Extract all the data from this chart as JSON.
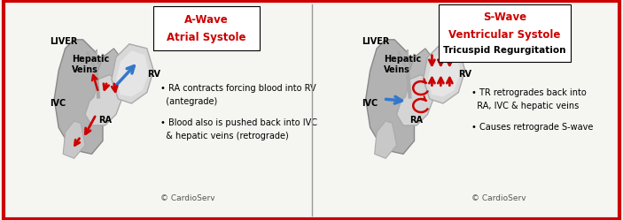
{
  "bg_color": "#f5f5f2",
  "border_color": "#cc0000",
  "border_width": 3,
  "panel1": {
    "title_line1": "A-Wave",
    "title_line2": "Atrial Systole",
    "title_color": "#cc0000",
    "bullet1a": "• RA contracts forcing blood into RV",
    "bullet1b": "  (antegrade)",
    "bullet2a": "• Blood also is pushed back into IVC",
    "bullet2b": "  & hepatic veins (retrograde)",
    "copyright": "© CardioServ"
  },
  "panel2": {
    "title_line1": "S-Wave",
    "title_line2": "Ventricular Systole",
    "title_line3": "Tricuspid Regurgitation",
    "title_color_12": "#cc0000",
    "title_color_3": "#000000",
    "bullet1a": "• TR retrogrades back into",
    "bullet1b": "  RA, IVC & hepatic veins",
    "bullet2a": "• Causes retrograde S-wave",
    "bullet2b": "",
    "copyright": "© CardioServ"
  },
  "red_arrow": "#cc0000",
  "blue_arrow": "#3377cc",
  "label_fontsize": 7,
  "bullet_fontsize": 7,
  "copyright_fontsize": 6.5
}
